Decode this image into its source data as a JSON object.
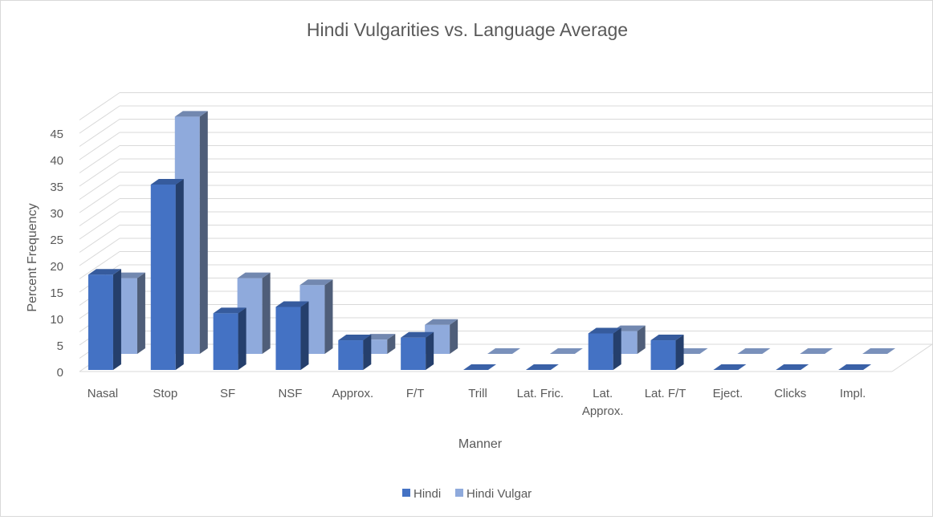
{
  "chart_data": {
    "type": "bar",
    "title": "Hindi Vulgarities vs. Language Average",
    "xlabel": "Manner",
    "ylabel": "Percent Frequency",
    "ylim": [
      0,
      45
    ],
    "yticks": [
      0,
      5,
      10,
      15,
      20,
      25,
      30,
      35,
      40,
      45
    ],
    "grid": true,
    "legend_position": "bottom",
    "categories": [
      "Nasal",
      "Stop",
      "SF",
      "NSF",
      "Approx.",
      "F/T",
      "Trill",
      "Lat. Fric.",
      "Lat. Approx.",
      "Lat. F/T",
      "Eject.",
      "Clicks",
      "Impl."
    ],
    "series": [
      {
        "name": "Hindi",
        "color": "#4472c4",
        "values": [
          18,
          35,
          10.7,
          11.9,
          5.6,
          6.1,
          0,
          0,
          6.9,
          5.6,
          0,
          0,
          0
        ]
      },
      {
        "name": "Hindi Vulgar",
        "color": "#8faadc",
        "values": [
          14.3,
          44.8,
          14.3,
          13,
          2.7,
          5.5,
          0,
          0,
          4.3,
          0,
          0,
          0,
          0
        ]
      }
    ]
  }
}
